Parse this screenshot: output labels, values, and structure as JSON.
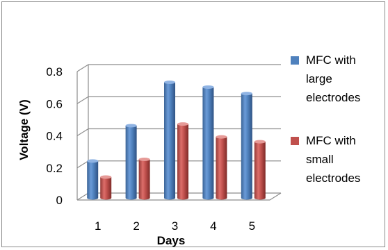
{
  "chart_data": {
    "type": "bar",
    "title": "",
    "categories": [
      "1",
      "2",
      "3",
      "4",
      "5"
    ],
    "series": [
      {
        "name": "MFC with large electrodes",
        "values": [
          0.23,
          0.45,
          0.72,
          0.69,
          0.65
        ],
        "color": "#4f81bd"
      },
      {
        "name": "MFC with small electrodes",
        "values": [
          0.13,
          0.24,
          0.46,
          0.38,
          0.35
        ],
        "color": "#c0504d"
      }
    ],
    "xlabel": "Days",
    "ylabel": "Voltage (V)",
    "ylim": [
      0,
      0.8
    ],
    "yticks": [
      "0",
      "0.2",
      "0.4",
      "0.6",
      "0.8"
    ],
    "grid": true,
    "legend": "right",
    "legend_lines": [
      [
        "MFC with",
        "large",
        "electrodes"
      ],
      [
        "MFC with",
        "small",
        "electrodes"
      ]
    ]
  }
}
